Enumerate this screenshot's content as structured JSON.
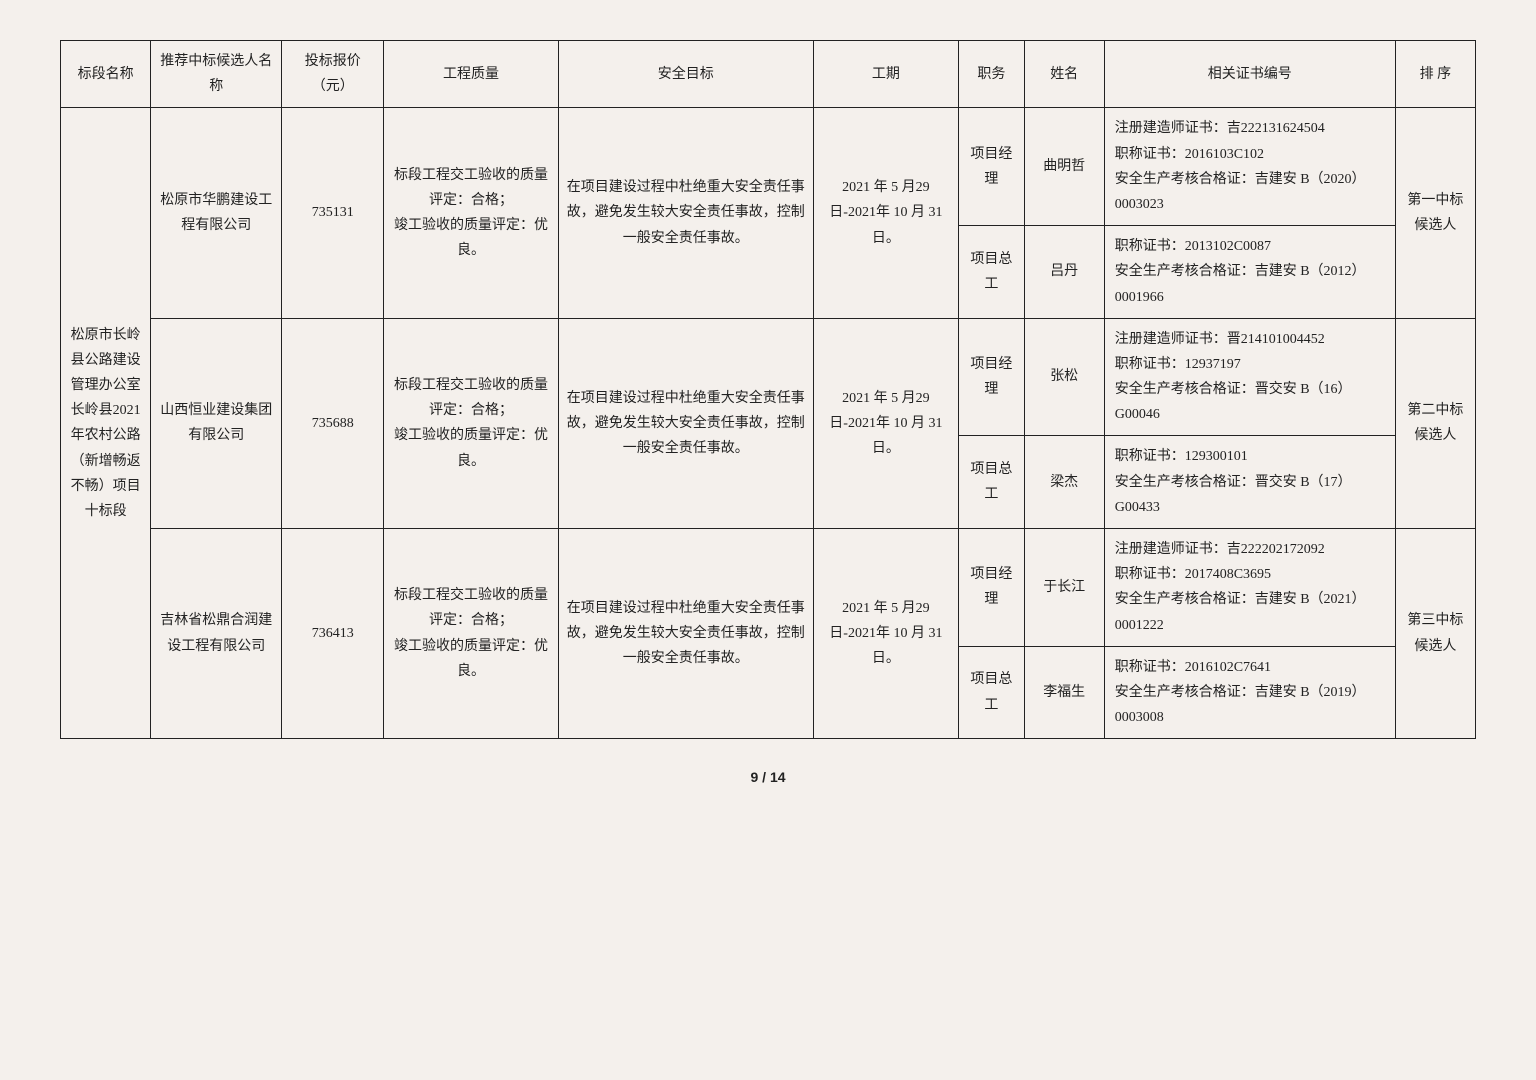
{
  "headers": {
    "section": "标段名称",
    "bidder": "推荐中标候选人名称",
    "price": "投标报价（元）",
    "quality": "工程质量",
    "safety": "安全目标",
    "period": "工期",
    "role": "职务",
    "name": "姓名",
    "cert": "相关证书编号",
    "rank": "排 序"
  },
  "section_name": "松原市长岭县公路建设管理办公室长岭县2021年农村公路（新增畅返不畅）项目十标段",
  "quality_text": "标段工程交工验收的质量评定：合格；\n竣工验收的质量评定：优良。",
  "safety_text": "在项目建设过程中杜绝重大安全责任事故，避免发生较大安全责任事故，控制一般安全责任事故。",
  "period_text": "2021 年 5 月29 日-2021年 10 月 31日。",
  "bidders": [
    {
      "company": "松原市华鹏建设工程有限公司",
      "price": "735131",
      "rank": "第一中标候选人",
      "staff": [
        {
          "role": "项目经理",
          "name": "曲明哲",
          "cert": "注册建造师证书：吉222131624504\n职称证书：2016103C102\n安全生产考核合格证：吉建安 B（2020）0003023"
        },
        {
          "role": "项目总工",
          "name": "吕丹",
          "cert": "职称证书：2013102C0087\n安全生产考核合格证：吉建安 B（2012）0001966"
        }
      ]
    },
    {
      "company": "山西恒业建设集团有限公司",
      "price": "735688",
      "rank": "第二中标候选人",
      "staff": [
        {
          "role": "项目经理",
          "name": "张松",
          "cert": "注册建造师证书：晋214101004452\n职称证书：12937197\n安全生产考核合格证：晋交安 B（16）G00046"
        },
        {
          "role": "项目总工",
          "name": "梁杰",
          "cert": "职称证书：129300101\n安全生产考核合格证：晋交安 B（17）G00433"
        }
      ]
    },
    {
      "company": "吉林省松鼎合润建设工程有限公司",
      "price": "736413",
      "rank": "第三中标候选人",
      "staff": [
        {
          "role": "项目经理",
          "name": "于长江",
          "cert": "注册建造师证书：吉222202172092\n职称证书：2017408C3695\n安全生产考核合格证：吉建安 B（2021）0001222"
        },
        {
          "role": "项目总工",
          "name": "李福生",
          "cert": "职称证书：2016102C7641\n安全生产考核合格证：吉建安 B（2019）0003008"
        }
      ]
    }
  ],
  "footer": "9 / 14"
}
